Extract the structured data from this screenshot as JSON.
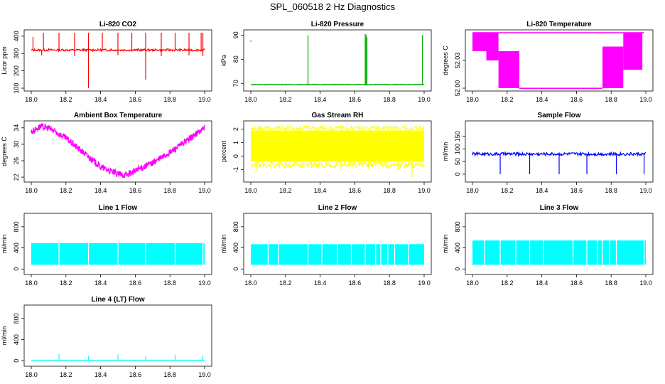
{
  "page_title": "SPL_060518  2 Hz Diagnostics",
  "chart_data": [
    {
      "type": "line",
      "title": "Li-820 CO2",
      "xlabel": "",
      "ylabel": "Licor ppm",
      "color": "#ff0000",
      "xlim": [
        18.0,
        19.0
      ],
      "ylim": [
        100,
        420
      ],
      "x_ticks": [
        "18.0",
        "18.2",
        "18.4",
        "18.6",
        "18.8",
        "19.0"
      ],
      "y_ticks": [
        100,
        200,
        300,
        400
      ],
      "grid": false,
      "series": [
        {
          "baseline": 320,
          "noise": 6,
          "spikes_up": [
            [
              18.01,
              395
            ],
            [
              18.07,
              420
            ],
            [
              18.1,
              330
            ],
            [
              18.16,
              420
            ],
            [
              18.25,
              420
            ],
            [
              18.3,
              330
            ],
            [
              18.33,
              420
            ],
            [
              18.41,
              420
            ],
            [
              18.46,
              330
            ],
            [
              18.5,
              420
            ],
            [
              18.58,
              420
            ],
            [
              18.62,
              330
            ],
            [
              18.66,
              420
            ],
            [
              18.75,
              420
            ],
            [
              18.79,
              330
            ],
            [
              18.83,
              420
            ],
            [
              18.91,
              420
            ],
            [
              18.98,
              420
            ],
            [
              18.99,
              420
            ]
          ],
          "spikes_down": [
            [
              18.33,
              100
            ],
            [
              18.66,
              150
            ],
            [
              18.06,
              290
            ],
            [
              18.25,
              285
            ],
            [
              18.5,
              290
            ],
            [
              18.75,
              285
            ],
            [
              18.91,
              290
            ],
            [
              18.99,
              285
            ]
          ]
        }
      ]
    },
    {
      "type": "line",
      "title": "Li-820 Pressure",
      "xlabel": "",
      "ylabel": "kPa",
      "color": "#00aa00",
      "xlim": [
        18.0,
        19.0
      ],
      "ylim": [
        68,
        91
      ],
      "x_ticks": [
        "18.0",
        "18.2",
        "18.4",
        "18.6",
        "18.8",
        "19.0"
      ],
      "y_ticks": [
        70,
        80,
        90
      ],
      "grid": false,
      "series": [
        {
          "baseline": 69.5,
          "noise": 0.15,
          "spikes_up": [
            [
              18.33,
              90
            ],
            [
              18.66,
              90.5
            ],
            [
              18.665,
              90
            ],
            [
              18.67,
              89
            ],
            [
              18.99,
              90
            ]
          ],
          "points": [
            [
              18.0,
              87.5
            ]
          ]
        }
      ]
    },
    {
      "type": "line",
      "title": "Li-820 Temperature",
      "xlabel": "",
      "ylabel": "degrees C",
      "color": "#ff00ff",
      "xlim": [
        18.0,
        19.0
      ],
      "ylim": [
        52.0,
        52.06
      ],
      "x_ticks": [
        "18.0",
        "18.2",
        "18.4",
        "18.6",
        "18.8",
        "19.0"
      ],
      "y_ticks": [
        "52.00",
        "52.03"
      ],
      "grid": false,
      "series": [
        {
          "segments": [
            [
              18.0,
              18.08,
              52.04,
              52.06
            ],
            [
              18.08,
              18.15,
              52.03,
              52.06
            ],
            [
              18.15,
              18.27,
              52.0,
              52.04
            ],
            [
              18.27,
              18.75,
              52.0,
              52.0
            ],
            [
              18.75,
              18.87,
              52.0,
              52.045
            ],
            [
              18.87,
              18.98,
              52.02,
              52.06
            ]
          ]
        }
      ]
    },
    {
      "type": "line",
      "title": "Ambient Box Temperature",
      "xlabel": "",
      "ylabel": "degrees C",
      "color": "#ff00ff",
      "xlim": [
        18.0,
        19.0
      ],
      "ylim": [
        21.5,
        35
      ],
      "x_ticks": [
        "18.0",
        "18.2",
        "18.4",
        "18.6",
        "18.8",
        "19.0"
      ],
      "y_ticks": [
        22,
        26,
        30,
        34
      ],
      "grid": false,
      "series": [
        {
          "curve": [
            [
              18.0,
              33.0
            ],
            [
              18.05,
              34.3
            ],
            [
              18.1,
              34.0
            ],
            [
              18.2,
              31.5
            ],
            [
              18.3,
              28.0
            ],
            [
              18.4,
              24.5
            ],
            [
              18.5,
              22.7
            ],
            [
              18.55,
              22.6
            ],
            [
              18.6,
              23.5
            ],
            [
              18.7,
              25.5
            ],
            [
              18.8,
              28.0
            ],
            [
              18.9,
              31.0
            ],
            [
              18.95,
              32.5
            ],
            [
              19.0,
              34.0
            ]
          ],
          "noise": 0.8
        }
      ]
    },
    {
      "type": "area",
      "title": "Gas Stream RH",
      "xlabel": "",
      "ylabel": "percent",
      "color": "#ffff00",
      "xlim": [
        18.0,
        19.0
      ],
      "ylim": [
        -1.7,
        2.4
      ],
      "x_ticks": [
        "18.0",
        "18.2",
        "18.4",
        "18.6",
        "18.8",
        "19.0"
      ],
      "y_ticks": [
        -1,
        0,
        1,
        2
      ],
      "grid": false,
      "series": [
        {
          "upper": 1.9,
          "lower": -0.4,
          "dips": [
            [
              18.03,
              -1.1
            ],
            [
              18.2,
              -0.9
            ],
            [
              18.35,
              -0.9
            ],
            [
              18.52,
              -1.0
            ],
            [
              18.68,
              -0.95
            ],
            [
              18.85,
              -1.0
            ],
            [
              18.93,
              -1.6
            ]
          ]
        }
      ]
    },
    {
      "type": "line",
      "title": "Sample Flow",
      "xlabel": "",
      "ylabel": "ml/min",
      "color": "#0000ff",
      "xlim": [
        18.0,
        19.0
      ],
      "ylim": [
        -20,
        200
      ],
      "x_ticks": [
        "18.0",
        "18.2",
        "18.4",
        "18.6",
        "18.8",
        "19.0"
      ],
      "y_ticks": [
        0,
        50,
        100,
        150
      ],
      "grid": false,
      "series": [
        {
          "baseline": 80,
          "noise": 6,
          "spikes_down": [
            [
              18.16,
              0
            ],
            [
              18.33,
              0
            ],
            [
              18.5,
              0
            ],
            [
              18.66,
              0
            ],
            [
              18.83,
              0
            ],
            [
              18.99,
              0
            ]
          ]
        }
      ]
    },
    {
      "type": "area",
      "title": "Line 1 Flow",
      "xlabel": "",
      "ylabel": "ml/min",
      "color": "#00ffff",
      "xlim": [
        18.0,
        19.0
      ],
      "ylim": [
        -50,
        1000
      ],
      "x_ticks": [
        "18.0",
        "18.2",
        "18.4",
        "18.6",
        "18.8",
        "19.0"
      ],
      "y_ticks": [
        0,
        400,
        800
      ],
      "grid": false,
      "series": [
        {
          "upper": 490,
          "lower": 80,
          "gaps": [
            18.16,
            18.33,
            18.5,
            18.66,
            18.83,
            18.99
          ]
        }
      ]
    },
    {
      "type": "area",
      "title": "Line 2 Flow",
      "xlabel": "",
      "ylabel": "ml/min",
      "color": "#00ffff",
      "xlim": [
        18.0,
        19.0
      ],
      "ylim": [
        -50,
        1000
      ],
      "x_ticks": [
        "18.0",
        "18.2",
        "18.4",
        "18.6",
        "18.8",
        "19.0"
      ],
      "y_ticks": [
        0,
        400,
        800
      ],
      "grid": false,
      "series": [
        {
          "upper": 470,
          "lower": 80,
          "gaps": [
            18.1,
            18.16,
            18.33,
            18.41,
            18.5,
            18.58,
            18.66,
            18.72,
            18.75,
            18.79,
            18.83,
            18.91
          ]
        }
      ]
    },
    {
      "type": "area",
      "title": "Line 3 Flow",
      "xlabel": "",
      "ylabel": "ml/min",
      "color": "#00ffff",
      "xlim": [
        18.0,
        19.0
      ],
      "ylim": [
        -50,
        1000
      ],
      "x_ticks": [
        "18.0",
        "18.2",
        "18.4",
        "18.6",
        "18.8",
        "19.0"
      ],
      "y_ticks": [
        0,
        400,
        800
      ],
      "grid": false,
      "series": [
        {
          "upper": 540,
          "lower": 80,
          "gaps": [
            18.07,
            18.16,
            18.25,
            18.33,
            18.41,
            18.58,
            18.66,
            18.72,
            18.75,
            18.79,
            18.83,
            18.99
          ]
        }
      ]
    },
    {
      "type": "line",
      "title": "Line 4 (LT) Flow",
      "xlabel": "",
      "ylabel": "ml/min",
      "color": "#00ffff",
      "xlim": [
        18.0,
        19.0
      ],
      "ylim": [
        -50,
        1000
      ],
      "x_ticks": [
        "18.0",
        "18.2",
        "18.4",
        "18.6",
        "18.8",
        "19.0"
      ],
      "y_ticks": [
        0,
        400,
        800
      ],
      "grid": false,
      "series": [
        {
          "baseline": 5,
          "noise": 2,
          "spikes_up": [
            [
              18.16,
              130
            ],
            [
              18.33,
              90
            ],
            [
              18.5,
              120
            ],
            [
              18.66,
              80
            ],
            [
              18.83,
              110
            ],
            [
              18.99,
              100
            ]
          ]
        }
      ]
    }
  ]
}
